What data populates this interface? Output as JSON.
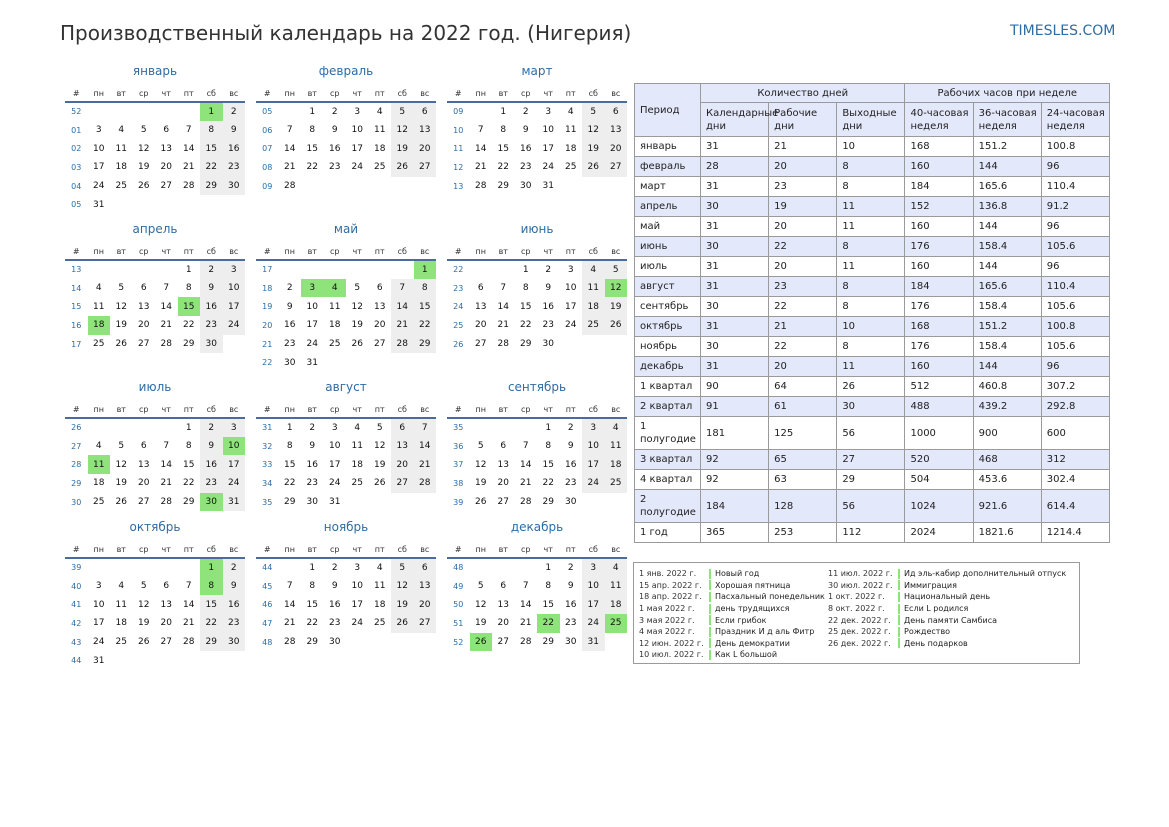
{
  "header": {
    "title": "Производственный календарь на 2022 год. (Нигерия)",
    "site": "TIMESLES.COM"
  },
  "weekday_header": [
    "#",
    "пн",
    "вт",
    "ср",
    "чт",
    "пт",
    "сб",
    "вс"
  ],
  "colors": {
    "accent": "#2e6ca4",
    "holiday": "#8ee47a",
    "weekend": "#eeeeee",
    "stripe": "#e4e8fb"
  },
  "months": [
    {
      "name": "январь",
      "weeks": [
        {
          "no": "52",
          "days": [
            "",
            "",
            "",
            "",
            "",
            "1",
            "2"
          ],
          "hol": [
            5
          ]
        },
        {
          "no": "01",
          "days": [
            "3",
            "4",
            "5",
            "6",
            "7",
            "8",
            "9"
          ]
        },
        {
          "no": "02",
          "days": [
            "10",
            "11",
            "12",
            "13",
            "14",
            "15",
            "16"
          ]
        },
        {
          "no": "03",
          "days": [
            "17",
            "18",
            "19",
            "20",
            "21",
            "22",
            "23"
          ]
        },
        {
          "no": "04",
          "days": [
            "24",
            "25",
            "26",
            "27",
            "28",
            "29",
            "30"
          ]
        },
        {
          "no": "05",
          "days": [
            "31",
            "",
            "",
            "",
            "",
            "",
            ""
          ]
        }
      ]
    },
    {
      "name": "февраль",
      "weeks": [
        {
          "no": "05",
          "days": [
            "",
            "1",
            "2",
            "3",
            "4",
            "5",
            "6"
          ]
        },
        {
          "no": "06",
          "days": [
            "7",
            "8",
            "9",
            "10",
            "11",
            "12",
            "13"
          ]
        },
        {
          "no": "07",
          "days": [
            "14",
            "15",
            "16",
            "17",
            "18",
            "19",
            "20"
          ]
        },
        {
          "no": "08",
          "days": [
            "21",
            "22",
            "23",
            "24",
            "25",
            "26",
            "27"
          ]
        },
        {
          "no": "09",
          "days": [
            "28",
            "",
            "",
            "",
            "",
            "",
            ""
          ]
        }
      ]
    },
    {
      "name": "март",
      "weeks": [
        {
          "no": "09",
          "days": [
            "",
            "1",
            "2",
            "3",
            "4",
            "5",
            "6"
          ]
        },
        {
          "no": "10",
          "days": [
            "7",
            "8",
            "9",
            "10",
            "11",
            "12",
            "13"
          ]
        },
        {
          "no": "11",
          "days": [
            "14",
            "15",
            "16",
            "17",
            "18",
            "19",
            "20"
          ]
        },
        {
          "no": "12",
          "days": [
            "21",
            "22",
            "23",
            "24",
            "25",
            "26",
            "27"
          ]
        },
        {
          "no": "13",
          "days": [
            "28",
            "29",
            "30",
            "31",
            "",
            "",
            ""
          ]
        }
      ]
    },
    {
      "name": "апрель",
      "weeks": [
        {
          "no": "13",
          "days": [
            "",
            "",
            "",
            "",
            "1",
            "2",
            "3"
          ]
        },
        {
          "no": "14",
          "days": [
            "4",
            "5",
            "6",
            "7",
            "8",
            "9",
            "10"
          ]
        },
        {
          "no": "15",
          "days": [
            "11",
            "12",
            "13",
            "14",
            "15",
            "16",
            "17"
          ],
          "hol": [
            4
          ]
        },
        {
          "no": "16",
          "days": [
            "18",
            "19",
            "20",
            "21",
            "22",
            "23",
            "24"
          ],
          "hol": [
            0
          ]
        },
        {
          "no": "17",
          "days": [
            "25",
            "26",
            "27",
            "28",
            "29",
            "30",
            ""
          ]
        }
      ]
    },
    {
      "name": "май",
      "weeks": [
        {
          "no": "17",
          "days": [
            "",
            "",
            "",
            "",
            "",
            "",
            "1"
          ],
          "hol": [
            6
          ]
        },
        {
          "no": "18",
          "days": [
            "2",
            "3",
            "4",
            "5",
            "6",
            "7",
            "8"
          ],
          "hol": [
            1,
            2
          ]
        },
        {
          "no": "19",
          "days": [
            "9",
            "10",
            "11",
            "12",
            "13",
            "14",
            "15"
          ]
        },
        {
          "no": "20",
          "days": [
            "16",
            "17",
            "18",
            "19",
            "20",
            "21",
            "22"
          ]
        },
        {
          "no": "21",
          "days": [
            "23",
            "24",
            "25",
            "26",
            "27",
            "28",
            "29"
          ]
        },
        {
          "no": "22",
          "days": [
            "30",
            "31",
            "",
            "",
            "",
            "",
            ""
          ]
        }
      ]
    },
    {
      "name": "июнь",
      "weeks": [
        {
          "no": "22",
          "days": [
            "",
            "",
            "1",
            "2",
            "3",
            "4",
            "5"
          ]
        },
        {
          "no": "23",
          "days": [
            "6",
            "7",
            "8",
            "9",
            "10",
            "11",
            "12"
          ],
          "hol": [
            6
          ]
        },
        {
          "no": "24",
          "days": [
            "13",
            "14",
            "15",
            "16",
            "17",
            "18",
            "19"
          ]
        },
        {
          "no": "25",
          "days": [
            "20",
            "21",
            "22",
            "23",
            "24",
            "25",
            "26"
          ]
        },
        {
          "no": "26",
          "days": [
            "27",
            "28",
            "29",
            "30",
            "",
            "",
            ""
          ]
        }
      ]
    },
    {
      "name": "июль",
      "weeks": [
        {
          "no": "26",
          "days": [
            "",
            "",
            "",
            "",
            "1",
            "2",
            "3"
          ]
        },
        {
          "no": "27",
          "days": [
            "4",
            "5",
            "6",
            "7",
            "8",
            "9",
            "10"
          ],
          "hol": [
            6
          ]
        },
        {
          "no": "28",
          "days": [
            "11",
            "12",
            "13",
            "14",
            "15",
            "16",
            "17"
          ],
          "hol": [
            0
          ]
        },
        {
          "no": "29",
          "days": [
            "18",
            "19",
            "20",
            "21",
            "22",
            "23",
            "24"
          ]
        },
        {
          "no": "30",
          "days": [
            "25",
            "26",
            "27",
            "28",
            "29",
            "30",
            "31"
          ],
          "hol": [
            5
          ]
        }
      ]
    },
    {
      "name": "август",
      "weeks": [
        {
          "no": "31",
          "days": [
            "1",
            "2",
            "3",
            "4",
            "5",
            "6",
            "7"
          ]
        },
        {
          "no": "32",
          "days": [
            "8",
            "9",
            "10",
            "11",
            "12",
            "13",
            "14"
          ]
        },
        {
          "no": "33",
          "days": [
            "15",
            "16",
            "17",
            "18",
            "19",
            "20",
            "21"
          ]
        },
        {
          "no": "34",
          "days": [
            "22",
            "23",
            "24",
            "25",
            "26",
            "27",
            "28"
          ]
        },
        {
          "no": "35",
          "days": [
            "29",
            "30",
            "31",
            "",
            "",
            "",
            ""
          ]
        }
      ]
    },
    {
      "name": "сентябрь",
      "weeks": [
        {
          "no": "35",
          "days": [
            "",
            "",
            "",
            "1",
            "2",
            "3",
            "4"
          ]
        },
        {
          "no": "36",
          "days": [
            "5",
            "6",
            "7",
            "8",
            "9",
            "10",
            "11"
          ]
        },
        {
          "no": "37",
          "days": [
            "12",
            "13",
            "14",
            "15",
            "16",
            "17",
            "18"
          ]
        },
        {
          "no": "38",
          "days": [
            "19",
            "20",
            "21",
            "22",
            "23",
            "24",
            "25"
          ]
        },
        {
          "no": "39",
          "days": [
            "26",
            "27",
            "28",
            "29",
            "30",
            "",
            ""
          ]
        }
      ]
    },
    {
      "name": "октябрь",
      "weeks": [
        {
          "no": "39",
          "days": [
            "",
            "",
            "",
            "",
            "",
            "1",
            "2"
          ],
          "hol": [
            5
          ]
        },
        {
          "no": "40",
          "days": [
            "3",
            "4",
            "5",
            "6",
            "7",
            "8",
            "9"
          ],
          "hol": [
            5
          ]
        },
        {
          "no": "41",
          "days": [
            "10",
            "11",
            "12",
            "13",
            "14",
            "15",
            "16"
          ]
        },
        {
          "no": "42",
          "days": [
            "17",
            "18",
            "19",
            "20",
            "21",
            "22",
            "23"
          ]
        },
        {
          "no": "43",
          "days": [
            "24",
            "25",
            "26",
            "27",
            "28",
            "29",
            "30"
          ]
        },
        {
          "no": "44",
          "days": [
            "31",
            "",
            "",
            "",
            "",
            "",
            ""
          ]
        }
      ]
    },
    {
      "name": "ноябрь",
      "weeks": [
        {
          "no": "44",
          "days": [
            "",
            "1",
            "2",
            "3",
            "4",
            "5",
            "6"
          ]
        },
        {
          "no": "45",
          "days": [
            "7",
            "8",
            "9",
            "10",
            "11",
            "12",
            "13"
          ]
        },
        {
          "no": "46",
          "days": [
            "14",
            "15",
            "16",
            "17",
            "18",
            "19",
            "20"
          ]
        },
        {
          "no": "47",
          "days": [
            "21",
            "22",
            "23",
            "24",
            "25",
            "26",
            "27"
          ]
        },
        {
          "no": "48",
          "days": [
            "28",
            "29",
            "30",
            "",
            "",
            "",
            ""
          ]
        }
      ]
    },
    {
      "name": "декабрь",
      "weeks": [
        {
          "no": "48",
          "days": [
            "",
            "",
            "",
            "1",
            "2",
            "3",
            "4"
          ]
        },
        {
          "no": "49",
          "days": [
            "5",
            "6",
            "7",
            "8",
            "9",
            "10",
            "11"
          ]
        },
        {
          "no": "50",
          "days": [
            "12",
            "13",
            "14",
            "15",
            "16",
            "17",
            "18"
          ]
        },
        {
          "no": "51",
          "days": [
            "19",
            "20",
            "21",
            "22",
            "23",
            "24",
            "25"
          ],
          "hol": [
            3,
            6
          ]
        },
        {
          "no": "52",
          "days": [
            "26",
            "27",
            "28",
            "29",
            "30",
            "31",
            ""
          ],
          "hol": [
            0
          ]
        }
      ]
    }
  ],
  "stats": {
    "period_header": "Период",
    "days_group": "Количество дней",
    "hours_group": "Рабочих часов при неделе",
    "sub_headers": [
      "Календарные дни",
      "Рабочие дни",
      "Выходные дни",
      "40-часовая неделя",
      "36-часовая неделя",
      "24-часовая неделя"
    ],
    "rows": [
      [
        "январь",
        "31",
        "21",
        "10",
        "168",
        "151.2",
        "100.8"
      ],
      [
        "февраль",
        "28",
        "20",
        "8",
        "160",
        "144",
        "96"
      ],
      [
        "март",
        "31",
        "23",
        "8",
        "184",
        "165.6",
        "110.4"
      ],
      [
        "апрель",
        "30",
        "19",
        "11",
        "152",
        "136.8",
        "91.2"
      ],
      [
        "май",
        "31",
        "20",
        "11",
        "160",
        "144",
        "96"
      ],
      [
        "июнь",
        "30",
        "22",
        "8",
        "176",
        "158.4",
        "105.6"
      ],
      [
        "июль",
        "31",
        "20",
        "11",
        "160",
        "144",
        "96"
      ],
      [
        "август",
        "31",
        "23",
        "8",
        "184",
        "165.6",
        "110.4"
      ],
      [
        "сентябрь",
        "30",
        "22",
        "8",
        "176",
        "158.4",
        "105.6"
      ],
      [
        "октябрь",
        "31",
        "21",
        "10",
        "168",
        "151.2",
        "100.8"
      ],
      [
        "ноябрь",
        "30",
        "22",
        "8",
        "176",
        "158.4",
        "105.6"
      ],
      [
        "декабрь",
        "31",
        "20",
        "11",
        "160",
        "144",
        "96"
      ],
      [
        "1 квартал",
        "90",
        "64",
        "26",
        "512",
        "460.8",
        "307.2"
      ],
      [
        "2 квартал",
        "91",
        "61",
        "30",
        "488",
        "439.2",
        "292.8"
      ],
      [
        "1 полугодие",
        "181",
        "125",
        "56",
        "1000",
        "900",
        "600"
      ],
      [
        "3 квартал",
        "92",
        "65",
        "27",
        "520",
        "468",
        "312"
      ],
      [
        "4 квартал",
        "92",
        "63",
        "29",
        "504",
        "453.6",
        "302.4"
      ],
      [
        "2 полугодие",
        "184",
        "128",
        "56",
        "1024",
        "921.6",
        "614.4"
      ],
      [
        "1 год",
        "365",
        "253",
        "112",
        "2024",
        "1821.6",
        "1214.4"
      ]
    ]
  },
  "holidays": {
    "left": [
      {
        "date": "1 янв. 2022 г.",
        "name": "Новый год"
      },
      {
        "date": "15 апр. 2022 г.",
        "name": "Хорошая пятница"
      },
      {
        "date": "18 апр. 2022 г.",
        "name": "Пасхальный понедельник"
      },
      {
        "date": "1 мая 2022 г.",
        "name": "день трудящихся"
      },
      {
        "date": "3 мая 2022 г.",
        "name": "Если грибок"
      },
      {
        "date": "4 мая 2022 г.",
        "name": "Праздник И д аль Фитр"
      },
      {
        "date": "12 июн. 2022 г.",
        "name": "День демократии"
      },
      {
        "date": "10 июл. 2022 г.",
        "name": "Как L большой"
      }
    ],
    "right": [
      {
        "date": "11 июл. 2022 г.",
        "name": "Ид эль-кабир дополнительный отпуск"
      },
      {
        "date": "30 июл. 2022 г.",
        "name": "Иммиграция"
      },
      {
        "date": "1 окт. 2022 г.",
        "name": "Национальный день"
      },
      {
        "date": "8 окт. 2022 г.",
        "name": "Если L родился"
      },
      {
        "date": "22 дек. 2022 г.",
        "name": "День памяти Самбиса"
      },
      {
        "date": "25 дек. 2022 г.",
        "name": "Рождество"
      },
      {
        "date": "26 дек. 2022 г.",
        "name": "День подарков"
      }
    ]
  }
}
